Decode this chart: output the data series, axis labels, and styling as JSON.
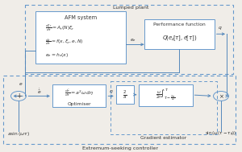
{
  "bg_color": "#f0ede8",
  "box_color": "#6699cc",
  "line_color": "#5588bb",
  "text_color": "#333333",
  "title": "Extremum-seeking controller",
  "lumped_plant_label": "Lumped plant",
  "afm_label": "AFM system",
  "perf_label": "Performance function",
  "grad_label": "Gradient estimator",
  "opt_label": "Optimiser",
  "label_ez": "$e_z$",
  "label_q": "$q$",
  "label_e": "$e$",
  "label_edot": "$\\dot{\\hat{e}}$",
  "label_eta": "$\\eta$",
  "sin_bottom": "$a\\sin\\left(\\omega\\tau\\right)$",
  "sin_right": "$\\sin\\left(\\omega\\left(\\tau-\\tau_\\phi\\right)\\right)$"
}
